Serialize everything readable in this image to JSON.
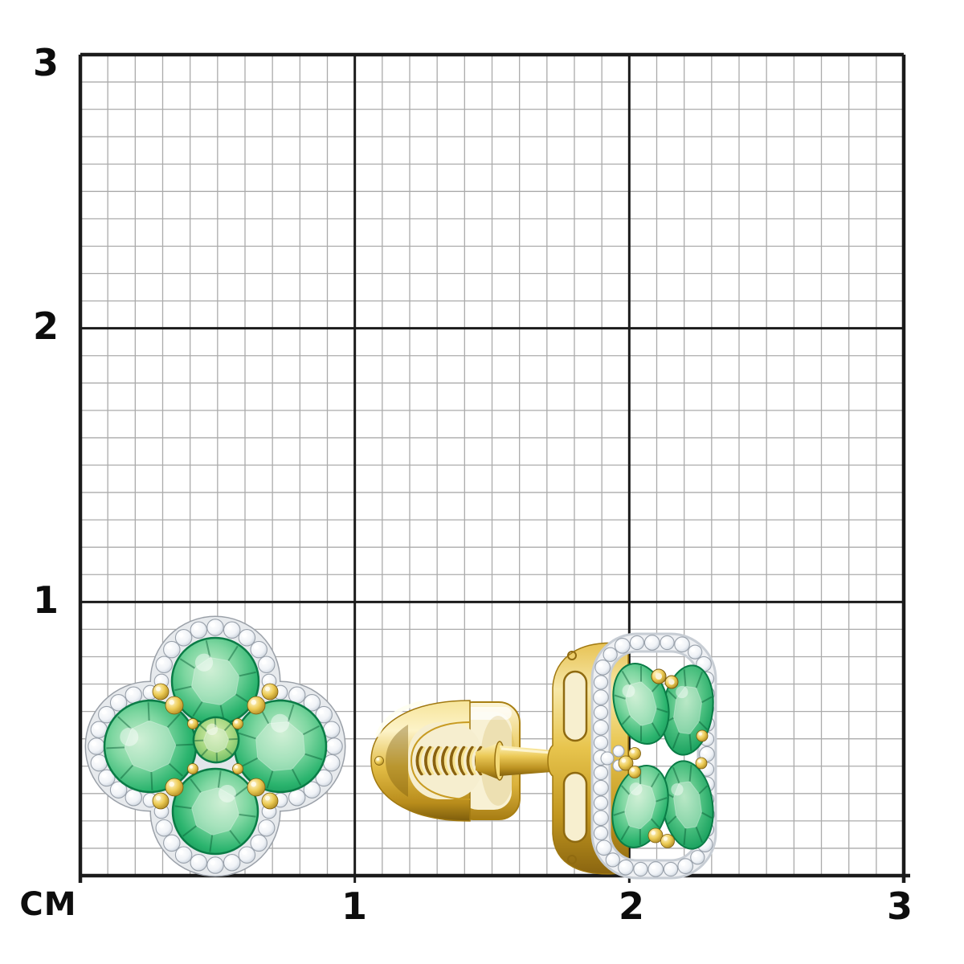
{
  "scene": {
    "description": "Pair of yellow-gold clover (quatrefoil) stud earrings with round green emeralds and a white-diamond halo, photographed on a centimeter grid sheet",
    "objects": [
      "earring front view with four emeralds and diamond halo",
      "earring side view showing screw-back post and gold basket"
    ]
  },
  "ruler": {
    "unit_label": "CM",
    "left_labels": [
      "3",
      "2",
      "1"
    ],
    "bottom_labels": [
      "1",
      "2",
      "3"
    ],
    "major_spacing_cm": 1,
    "minor_divisions_per_cm": 10
  },
  "colors": {
    "background": "#ffffff",
    "grid_minor": "#ababab",
    "grid_major": "#1b1b1b",
    "emerald": "#1fb266",
    "emerald_light": "#a9e3bb",
    "emerald_deep": "#0a7c46",
    "gold": "#e5c052",
    "gold_deep": "#8f6a10",
    "diamond": "#eef1f5",
    "diamond_edge": "#99a1ab",
    "silver_band": "#e7eaed"
  }
}
